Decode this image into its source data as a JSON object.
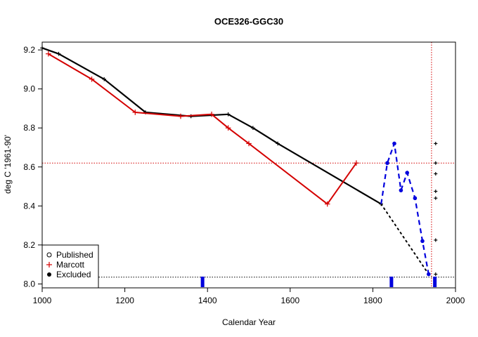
{
  "chart_data": {
    "type": "line",
    "title": "OCE326-GGC30",
    "xlabel": "Calendar Year",
    "ylabel": "deg C '1961-90'",
    "xlim": [
      1000,
      2000
    ],
    "ylim": [
      7.98,
      9.24
    ],
    "xticks": [
      1000,
      1200,
      1400,
      1600,
      1800,
      2000
    ],
    "yticks": [
      8.0,
      8.2,
      8.4,
      8.6,
      8.8,
      9.0,
      9.2
    ],
    "ytick_labels": [
      "8.0",
      "8.2",
      "8.4",
      "8.6",
      "8.8",
      "9.0",
      "9.2"
    ],
    "legend_position": "bottom-left",
    "legend": [
      {
        "label": "Published",
        "marker": "open-circle",
        "color": "#000000"
      },
      {
        "label": "Marcott",
        "marker": "plus",
        "color": "#d40000"
      },
      {
        "label": "Excluded",
        "marker": "filled-circle",
        "color": "#000000"
      }
    ],
    "reference_lines": {
      "h_red": 8.62,
      "h_black": 8.035,
      "v_red": 1942
    },
    "colors": {
      "published": "#000000",
      "marcott": "#d40000",
      "excluded": "#0000dd",
      "reference": "#d40000"
    },
    "series": [
      {
        "name": "Published",
        "style": "solid",
        "x": [
          1000,
          1040,
          1150,
          1250,
          1360,
          1450,
          1510,
          1570,
          1820
        ],
        "y": [
          9.21,
          9.18,
          9.05,
          8.88,
          8.86,
          8.87,
          8.8,
          8.72,
          8.41
        ]
      },
      {
        "name": "Marcott",
        "style": "solid",
        "x": [
          1015,
          1120,
          1225,
          1335,
          1410,
          1450,
          1500,
          1690,
          1760
        ],
        "y": [
          9.18,
          9.05,
          8.88,
          8.86,
          8.87,
          8.8,
          8.72,
          8.41,
          8.62
        ]
      },
      {
        "name": "Published (dotted)",
        "style": "dotted",
        "x": [
          1820,
          1935
        ],
        "y": [
          8.41,
          8.05
        ]
      },
      {
        "name": "Excluded",
        "style": "dashed",
        "x": [
          1820,
          1835,
          1852,
          1868,
          1883,
          1902,
          1920,
          1935
        ],
        "y": [
          8.41,
          8.62,
          8.72,
          8.48,
          8.57,
          8.44,
          8.22,
          8.05
        ]
      },
      {
        "name": "Excluded plus column",
        "style": "points-plus",
        "x": [
          1952,
          1952,
          1952,
          1952,
          1952,
          1952,
          1952
        ],
        "y": [
          8.72,
          8.62,
          8.565,
          8.475,
          8.44,
          8.225,
          8.05
        ]
      }
    ],
    "rug_markers": [
      1388,
      1845,
      1950
    ]
  }
}
